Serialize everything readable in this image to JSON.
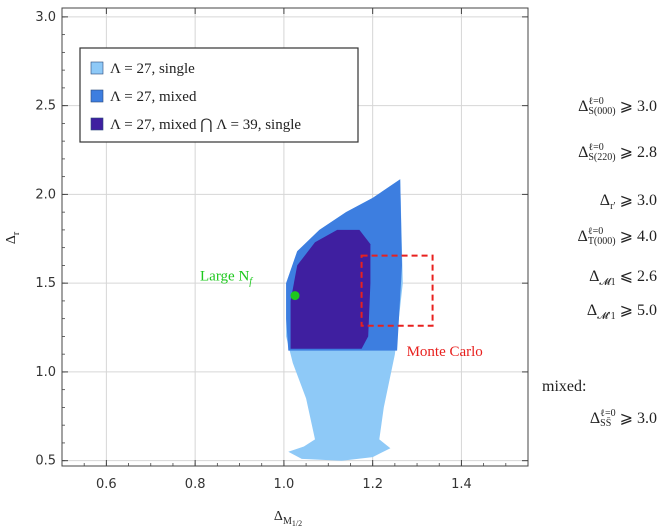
{
  "chart_data": {
    "type": "area",
    "xlabel": "Δ_{M_{1/2}}",
    "ylabel": "Δ_r",
    "xlim": [
      0.5,
      1.55
    ],
    "ylim": [
      0.47,
      3.05
    ],
    "x_ticks": [
      "0.6",
      "0.8",
      "1.0",
      "1.2",
      "1.4"
    ],
    "y_ticks": [
      "0.5",
      "1.0",
      "1.5",
      "2.0",
      "2.5",
      "3.0"
    ],
    "grid": true,
    "legend_position": "top-left",
    "series": [
      {
        "name": "Λ = 27, single",
        "color": "#8ec9f7",
        "boundary": [
          [
            1.13,
            0.5
          ],
          [
            1.04,
            0.51
          ],
          [
            1.01,
            0.55
          ],
          [
            1.045,
            0.58
          ],
          [
            1.07,
            0.62
          ],
          [
            1.05,
            0.85
          ],
          [
            1.02,
            1.05
          ],
          [
            1.005,
            1.2
          ],
          [
            1.005,
            1.5
          ],
          [
            1.03,
            1.68
          ],
          [
            1.08,
            1.8
          ],
          [
            1.14,
            1.9
          ],
          [
            1.2,
            1.98
          ],
          [
            1.262,
            2.085
          ],
          [
            1.268,
            1.5
          ],
          [
            1.25,
            1.1
          ],
          [
            1.225,
            0.8
          ],
          [
            1.215,
            0.62
          ],
          [
            1.24,
            0.57
          ],
          [
            1.2,
            0.52
          ]
        ]
      },
      {
        "name": "Λ = 27, mixed",
        "color": "#3d7ee0",
        "boundary": [
          [
            1.01,
            1.12
          ],
          [
            1.005,
            1.3
          ],
          [
            1.005,
            1.5
          ],
          [
            1.03,
            1.68
          ],
          [
            1.08,
            1.8
          ],
          [
            1.14,
            1.9
          ],
          [
            1.2,
            1.98
          ],
          [
            1.262,
            2.085
          ],
          [
            1.266,
            1.6
          ],
          [
            1.255,
            1.12
          ]
        ]
      },
      {
        "name": "Λ = 27, mixed ⋂ Λ = 39, single",
        "color": "#3f1fa0",
        "boundary": [
          [
            1.015,
            1.13
          ],
          [
            1.015,
            1.4
          ],
          [
            1.03,
            1.6
          ],
          [
            1.07,
            1.73
          ],
          [
            1.12,
            1.8
          ],
          [
            1.17,
            1.8
          ],
          [
            1.195,
            1.72
          ],
          [
            1.195,
            1.5
          ],
          [
            1.19,
            1.2
          ],
          [
            1.175,
            1.13
          ]
        ]
      }
    ],
    "annotations": [
      {
        "name": "Large N_f",
        "label": "Large N",
        "sub": "f",
        "x": 1.025,
        "y": 1.43,
        "color": "#1ec81e"
      },
      {
        "name": "Monte Carlo",
        "label": "Monte Carlo",
        "box": [
          1.175,
          1.335,
          1.26,
          1.655
        ],
        "color": "#e8201e"
      }
    ]
  },
  "legend": {
    "items": [
      {
        "label": "Λ = 27, single",
        "color": "#8ec9f7"
      },
      {
        "label": "Λ = 27, mixed",
        "color": "#3d7ee0"
      },
      {
        "label": "Λ = 27, mixed ⋂ Λ = 39, single",
        "color": "#3f1fa0"
      }
    ]
  },
  "conditions": {
    "c1": {
      "a": "Δ",
      "sup": "ℓ=0",
      "sub": "S(000)",
      "rel": "⩾ 3.0"
    },
    "c2": {
      "a": "Δ",
      "sup": "ℓ=0",
      "sub": "S(220)",
      "rel": "⩾ 2.8"
    },
    "c3": {
      "a": "Δ",
      "sub": "r′",
      "rel": "⩾ 3.0"
    },
    "c4": {
      "a": "Δ",
      "sup": "ℓ=0",
      "sub": "T(000)",
      "rel": "⩾ 4.0"
    },
    "c5": {
      "a": "Δ",
      "sub": "𝓜1",
      "rel": "⩽ 2.6"
    },
    "c6": {
      "a": "Δ",
      "sub": "𝓜′1",
      "rel": "⩾ 5.0"
    },
    "mixed_label": "mixed:",
    "c7": {
      "a": "Δ",
      "sup": "ℓ=0",
      "sub": "SS̄",
      "rel": "⩾ 3.0"
    }
  }
}
